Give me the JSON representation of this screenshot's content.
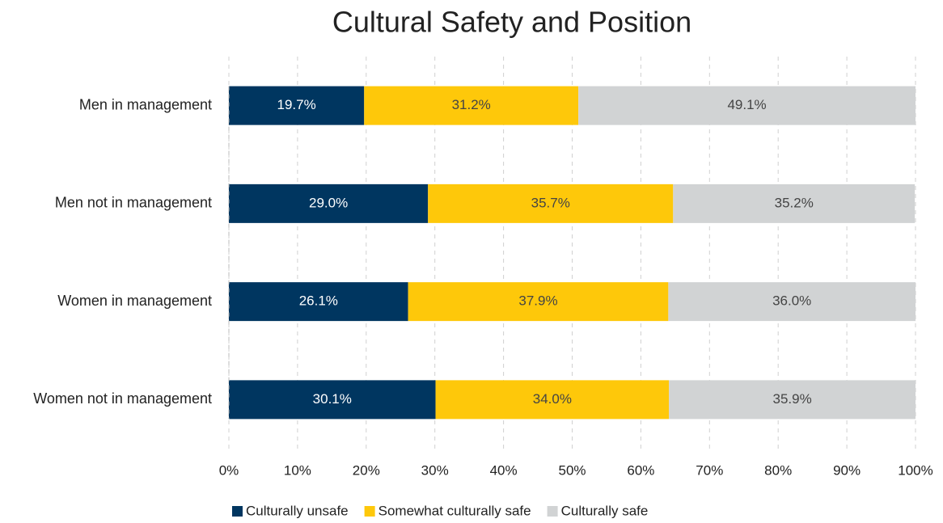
{
  "chart_data": {
    "type": "stacked_bar_horizontal",
    "title": "Cultural Safety and Position",
    "categories": [
      "Men in management",
      "Men not in management",
      "Women in management",
      "Women not in management"
    ],
    "series": [
      {
        "name": "Culturally unsafe",
        "color": "#003660",
        "label_color": "#ffffff",
        "values": [
          19.7,
          29.0,
          26.1,
          30.1
        ],
        "value_labels": [
          "19.7%",
          "29.0%",
          "26.1%",
          "30.1%"
        ]
      },
      {
        "name": "Somewhat culturally safe",
        "color": "#fec80a",
        "label_color": "#444444",
        "values": [
          31.2,
          35.7,
          37.9,
          34.0
        ],
        "value_labels": [
          "31.2%",
          "35.7%",
          "37.9%",
          "34.0%"
        ]
      },
      {
        "name": "Culturally safe",
        "color": "#d1d3d4",
        "label_color": "#444444",
        "values": [
          49.1,
          35.2,
          36.0,
          35.9
        ],
        "value_labels": [
          "49.1%",
          "35.2%",
          "36.0%",
          "35.9%"
        ]
      }
    ],
    "xlim": [
      0,
      100
    ],
    "xticks": [
      {
        "value": 0,
        "label": "0%"
      },
      {
        "value": 10,
        "label": "10%"
      },
      {
        "value": 20,
        "label": "20%"
      },
      {
        "value": 30,
        "label": "30%"
      },
      {
        "value": 40,
        "label": "40%"
      },
      {
        "value": 50,
        "label": "50%"
      },
      {
        "value": 60,
        "label": "60%"
      },
      {
        "value": 70,
        "label": "70%"
      },
      {
        "value": 80,
        "label": "80%"
      },
      {
        "value": 90,
        "label": "90%"
      },
      {
        "value": 100,
        "label": "100%"
      }
    ],
    "grid": true,
    "legend": "bottom"
  }
}
